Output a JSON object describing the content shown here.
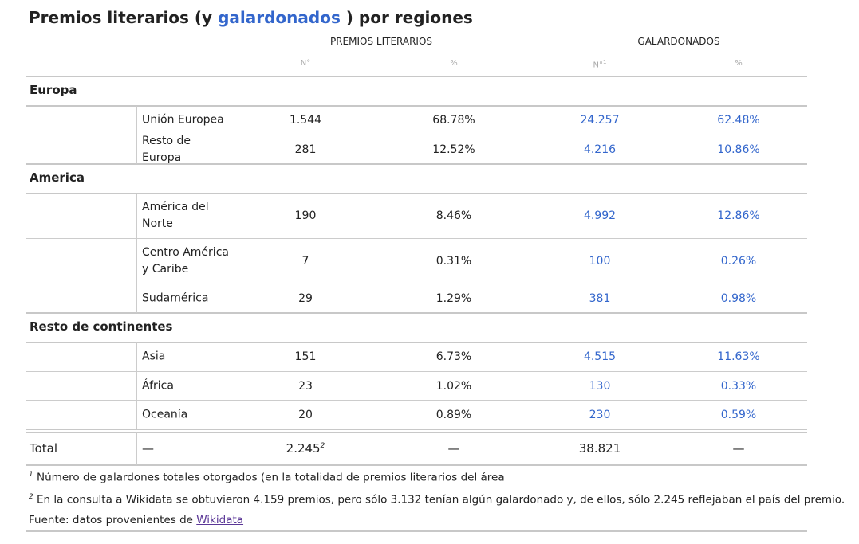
{
  "title": {
    "before": "Premios literarios (y ",
    "highlight": "galardonados",
    "after": " ) por regiones"
  },
  "headers": {
    "group1": "PREMIOS LITERARIOS",
    "group2": "GALARDONADOS",
    "sub1": "N°",
    "sub2": "%",
    "sub3": "N°",
    "sub3_sup": "1",
    "sub4": "%"
  },
  "regions": [
    {
      "name": "Europa"
    },
    {
      "name": "America"
    },
    {
      "name": "Resto de continentes"
    }
  ],
  "rows": [
    {
      "name": "Unión Europea",
      "premios_n": "1.544",
      "premios_pct": "68.78%",
      "gal_n": "24.257",
      "gal_pct": "62.48%"
    },
    {
      "name": "Resto de Europa",
      "premios_n": "281",
      "premios_pct": "12.52%",
      "gal_n": "4.216",
      "gal_pct": "10.86%"
    },
    {
      "name": "América del Norte",
      "premios_n": "190",
      "premios_pct": "8.46%",
      "gal_n": "4.992",
      "gal_pct": "12.86%"
    },
    {
      "name": "Centro América y Caribe",
      "premios_n": "7",
      "premios_pct": "0.31%",
      "gal_n": "100",
      "gal_pct": "0.26%"
    },
    {
      "name": "Sudamérica",
      "premios_n": "29",
      "premios_pct": "1.29%",
      "gal_n": "381",
      "gal_pct": "0.98%"
    },
    {
      "name": "Asia",
      "premios_n": "151",
      "premios_pct": "6.73%",
      "gal_n": "4.515",
      "gal_pct": "11.63%"
    },
    {
      "name": "África",
      "premios_n": "23",
      "premios_pct": "1.02%",
      "gal_n": "130",
      "gal_pct": "0.33%"
    },
    {
      "name": "Oceanía",
      "premios_n": "20",
      "premios_pct": "0.89%",
      "gal_n": "230",
      "gal_pct": "0.59%"
    }
  ],
  "total": {
    "label": "Total",
    "name": "—",
    "premios_n": "2.245",
    "premios_n_sup": "2",
    "premios_pct": "—",
    "gal_n": "38.821",
    "gal_pct": "—"
  },
  "footnotes": {
    "note1_mark": "1",
    "note1": "Número de galardones totales otorgados (en la totalidad de premios literarios del área",
    "note2_mark": "2",
    "note2": "En la consulta a Wikidata se obtuvieron 4.159 premios, pero sólo 3.132 tenían algún galardonado y, de ellos, sólo 2.245 reflejaban el país del premio.",
    "source_prefix": "Fuente: datos provenientes de ",
    "source_link": "Wikidata"
  }
}
